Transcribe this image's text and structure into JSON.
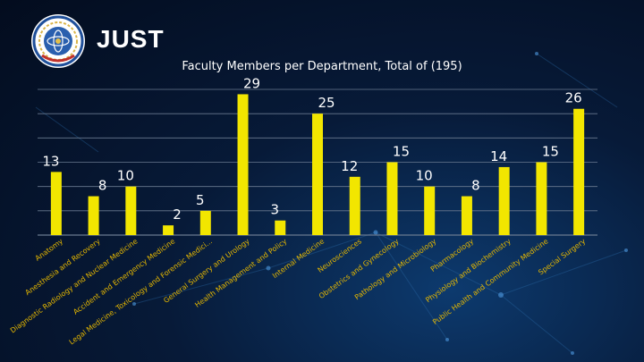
{
  "header": {
    "brand": "JUST",
    "logo_icon": "university-seal-icon"
  },
  "colors": {
    "bar": "#f2e600",
    "grid": "#6a7a90",
    "label": "#e6b800",
    "value": "#ffffff"
  },
  "chart_data": {
    "type": "bar",
    "title": "Faculty Members per Department, Total of (195)",
    "xlabel": "",
    "ylabel": "",
    "ylim": [
      0,
      30
    ],
    "grid": true,
    "categories": [
      "Anatomy",
      "Anesthesia and Recovery",
      "Diagnostic Radiology and Nuclear Medicine",
      "Accident and Emergency Medicine",
      "Legal Medicine, Toxicology and Forensic Medici...",
      "General Surgery and Urology",
      "Health Management and Policy",
      "Internal Medicine",
      "Neurosciences",
      "Obstetrics and Gynecology",
      "Pathology and Microbiology",
      "Pharmacology",
      "Physiology and Biochemistry",
      "Public Health and Community Medicine",
      "Special Surgery"
    ],
    "values": [
      13,
      8,
      10,
      2,
      5,
      29,
      3,
      25,
      12,
      15,
      10,
      8,
      14,
      15,
      26
    ]
  }
}
